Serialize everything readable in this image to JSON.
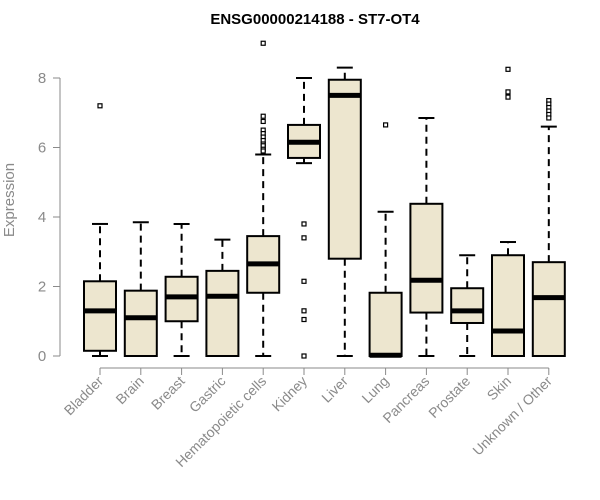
{
  "chart_data": {
    "type": "boxplot",
    "title": "ENSG00000214188 - ST7-OT4",
    "xlabel": "",
    "ylabel": "Expression",
    "ylim": [
      0,
      9
    ],
    "yticks": [
      0,
      2,
      4,
      6,
      8
    ],
    "grid": false,
    "legend": "none",
    "colors": {
      "box_fill": "#ede6cf",
      "box_stroke": "#000000",
      "axis": "#8a8a8a",
      "title": "#000000"
    },
    "categories": [
      "Bladder",
      "Brain",
      "Breast",
      "Gastric",
      "Hematopoietic cells",
      "Kidney",
      "Liver",
      "Lung",
      "Pancreas",
      "Prostate",
      "Skin",
      "Unknown / Other"
    ],
    "boxes": [
      {
        "category": "Bladder",
        "whisker_low": 0.0,
        "q1": 0.15,
        "median": 1.3,
        "q3": 2.15,
        "whisker_high": 3.8,
        "outliers": [
          7.2
        ]
      },
      {
        "category": "Brain",
        "whisker_low": 0.0,
        "q1": 0.0,
        "median": 1.1,
        "q3": 1.88,
        "whisker_high": 3.85,
        "outliers": []
      },
      {
        "category": "Breast",
        "whisker_low": 0.0,
        "q1": 1.0,
        "median": 1.7,
        "q3": 2.28,
        "whisker_high": 3.8,
        "outliers": []
      },
      {
        "category": "Gastric",
        "whisker_low": 0.0,
        "q1": 0.0,
        "median": 1.72,
        "q3": 2.45,
        "whisker_high": 3.35,
        "outliers": []
      },
      {
        "category": "Hematopoietic cells",
        "whisker_low": 0.0,
        "q1": 1.82,
        "median": 2.65,
        "q3": 3.45,
        "whisker_high": 5.8,
        "outliers": [
          9.0,
          6.9,
          6.75,
          6.5,
          6.4,
          6.3,
          6.2,
          6.1,
          6.05,
          5.95,
          5.9
        ]
      },
      {
        "category": "Kidney",
        "whisker_low": 5.55,
        "q1": 5.7,
        "median": 6.15,
        "q3": 6.65,
        "whisker_high": 8.0,
        "outliers": [
          3.8,
          3.4,
          2.15,
          1.3,
          1.05,
          0.0
        ]
      },
      {
        "category": "Liver",
        "whisker_low": 0.0,
        "q1": 2.8,
        "median": 7.5,
        "q3": 7.95,
        "whisker_high": 8.3,
        "outliers": []
      },
      {
        "category": "Lung",
        "whisker_low": 0.0,
        "q1": 0.0,
        "median": 0.02,
        "q3": 1.82,
        "whisker_high": 4.15,
        "outliers": [
          6.65
        ]
      },
      {
        "category": "Pancreas",
        "whisker_low": 0.0,
        "q1": 1.25,
        "median": 2.18,
        "q3": 4.38,
        "whisker_high": 6.85,
        "outliers": []
      },
      {
        "category": "Prostate",
        "whisker_low": 0.0,
        "q1": 0.95,
        "median": 1.3,
        "q3": 1.95,
        "whisker_high": 2.9,
        "outliers": []
      },
      {
        "category": "Skin",
        "whisker_low": 0.0,
        "q1": 0.0,
        "median": 0.72,
        "q3": 2.9,
        "whisker_high": 3.28,
        "outliers": [
          8.25,
          7.6,
          7.45
        ]
      },
      {
        "category": "Unknown / Other",
        "whisker_low": 0.0,
        "q1": 0.0,
        "median": 1.68,
        "q3": 2.7,
        "whisker_high": 6.6,
        "outliers": [
          7.35,
          7.25,
          7.15,
          7.05,
          6.95,
          6.85
        ]
      }
    ]
  }
}
